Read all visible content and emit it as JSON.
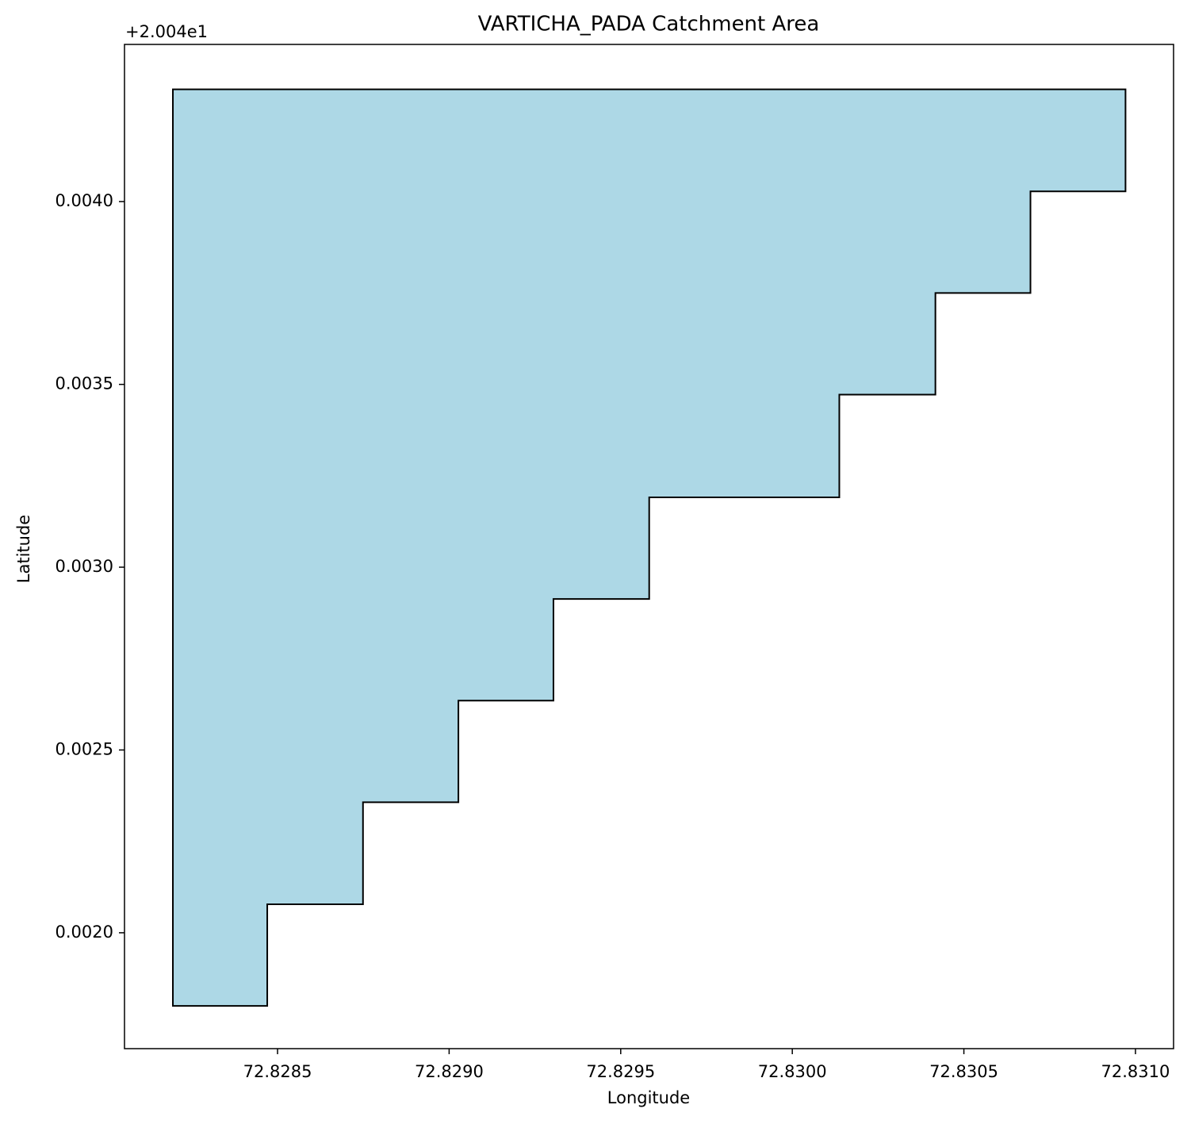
{
  "chart_data": {
    "type": "polygon",
    "title": "VARTICHA_PADA Catchment Area",
    "x_label": "Longitude",
    "y_label": "Latitude",
    "y_offset_label": "+2.004e1",
    "x": [
      72.828195,
      72.830971,
      72.830971,
      72.830694,
      72.830694,
      72.830417,
      72.830417,
      72.830137,
      72.830137,
      72.829583,
      72.829583,
      72.829304,
      72.829304,
      72.829027,
      72.829027,
      72.828749,
      72.828749,
      72.82847,
      72.82847,
      72.828195
    ],
    "values": [
      0.004307,
      0.004307,
      0.004028,
      0.004028,
      0.00375,
      0.00375,
      0.003472,
      0.003472,
      0.003191,
      0.003191,
      0.002913,
      0.002913,
      0.002635,
      0.002635,
      0.002357,
      0.002357,
      0.002078,
      0.002078,
      0.0018,
      0.0018
    ],
    "color": "#add8e6",
    "edge_color": "#000000",
    "xlim": [
      72.828054,
      72.831111
    ],
    "ylim": [
      0.001683,
      0.00443
    ],
    "xticks": [
      72.8285,
      {
        "value": 72.829,
        "label": "72.8290"
      },
      72.8295,
      {
        "value": 72.83,
        "label": "72.8300"
      },
      72.8305,
      {
        "value": 72.831,
        "label": "72.8310"
      }
    ],
    "yticks": [
      {
        "value": 0.002,
        "label": "0.0020"
      },
      {
        "value": 0.0025,
        "label": "0.0025"
      },
      {
        "value": 0.003,
        "label": "0.0030"
      },
      {
        "value": 0.0035,
        "label": "0.0035"
      },
      {
        "value": 0.004,
        "label": "0.0040"
      }
    ],
    "grid": false
  }
}
